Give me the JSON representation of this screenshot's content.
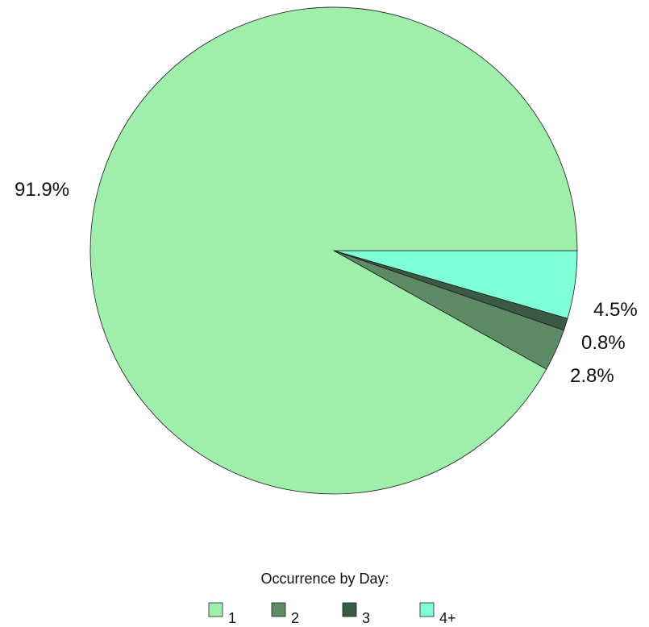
{
  "chart_data": {
    "type": "pie",
    "legend_title": "Occurrence by Day:",
    "legend_position": "bottom",
    "slices": [
      {
        "label": "1",
        "value": 91.9,
        "display": "91.9%",
        "color": "#a0eeab"
      },
      {
        "label": "2",
        "value": 2.8,
        "display": "2.8%",
        "color": "#5e8a66"
      },
      {
        "label": "3",
        "value": 0.8,
        "display": "0.8%",
        "color": "#3b5a43"
      },
      {
        "label": "4+",
        "value": 4.5,
        "display": "4.5%",
        "color": "#7fffd6"
      }
    ]
  }
}
